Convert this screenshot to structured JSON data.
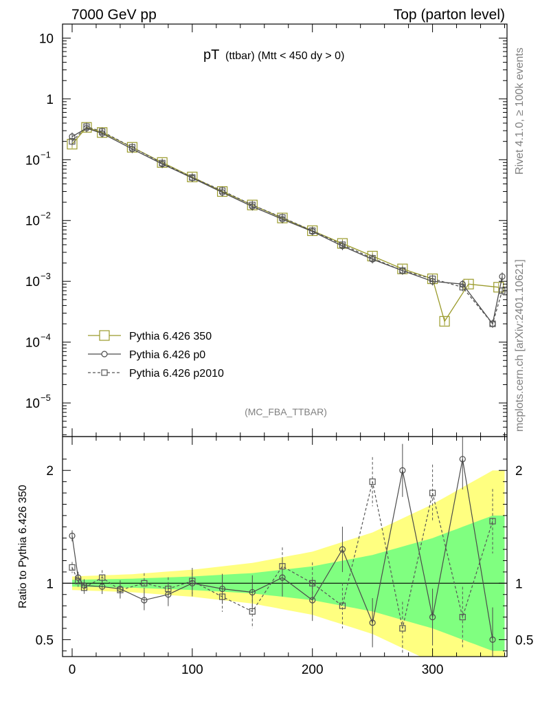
{
  "header": {
    "left": "7000 GeV pp",
    "right": "Top (parton level)"
  },
  "side": {
    "rivet": "Rivet 4.1.0, ≥ 100k events",
    "mcplots": "mcplots.cern.ch [arXiv:2401.10621]"
  },
  "plot": {
    "title_main": "pT",
    "title_rest": "(ttbar) (Mtt < 450 dy > 0)",
    "analysis": "(MC_FBA_TTBAR)",
    "ratio_ylabel": "Ratio to Pythia 6.426 350"
  },
  "colors": {
    "ref": "#9a9a2a",
    "p0": "#4a4a4a",
    "p2010": "#555555",
    "band_outer": "#ffff80",
    "band_inner": "#80ff80"
  },
  "chart_data": [
    {
      "type": "line",
      "title": "pT (ttbar) (Mtt < 450 dy > 0)",
      "xlabel": "",
      "ylabel": "",
      "yscale": "log",
      "xlim": [
        -8,
        362
      ],
      "ylim": [
        2.8e-06,
        17
      ],
      "x_ticks": [
        "0",
        "100",
        "200",
        "300"
      ],
      "y_ticks": [
        "10",
        "1",
        "10^-1",
        "10^-2",
        "10^-3",
        "10^-4",
        "10^-5"
      ],
      "legend": [
        {
          "name": "Pythia 6.426 350",
          "style": "solid-square"
        },
        {
          "name": "Pythia 6.426 p0",
          "style": "solid-circle"
        },
        {
          "name": "Pythia 6.426 p2010",
          "style": "dashed-square"
        }
      ],
      "legend_position": "bottom-left",
      "series": [
        {
          "name": "Pythia 6.426 350",
          "x": [
            0,
            12,
            25,
            50,
            75,
            100,
            125,
            150,
            175,
            200,
            225,
            250,
            275,
            300,
            310,
            330,
            355
          ],
          "values": [
            0.18,
            0.34,
            0.28,
            0.16,
            0.09,
            0.052,
            0.03,
            0.018,
            0.011,
            0.0068,
            0.0042,
            0.0026,
            0.0016,
            0.0011,
            0.00022,
            0.0009,
            0.0008
          ]
        },
        {
          "name": "Pythia 6.426 p0",
          "x": [
            0,
            12,
            25,
            50,
            75,
            100,
            125,
            150,
            175,
            200,
            225,
            250,
            275,
            300,
            325,
            350,
            358
          ],
          "values": [
            0.24,
            0.33,
            0.27,
            0.15,
            0.085,
            0.05,
            0.029,
            0.017,
            0.0105,
            0.0066,
            0.0038,
            0.0023,
            0.0015,
            0.001,
            0.0009,
            0.0002,
            0.0012
          ]
        },
        {
          "name": "Pythia 6.426 p2010",
          "x": [
            0,
            12,
            25,
            50,
            75,
            100,
            125,
            150,
            175,
            200,
            225,
            250,
            275,
            300,
            325,
            350,
            358
          ],
          "values": [
            0.2,
            0.35,
            0.29,
            0.16,
            0.088,
            0.051,
            0.031,
            0.018,
            0.0112,
            0.0068,
            0.004,
            0.0024,
            0.0015,
            0.0011,
            0.0008,
            0.0002,
            0.0007
          ]
        }
      ]
    },
    {
      "type": "line",
      "title": "",
      "xlabel": "",
      "ylabel": "Ratio to Pythia 6.426 350",
      "xlim": [
        -8,
        362
      ],
      "ylim": [
        0.35,
        2.3
      ],
      "x_ticks": [
        "0",
        "100",
        "200",
        "300"
      ],
      "y_ticks": [
        "0.5",
        "1",
        "2"
      ],
      "bands": {
        "x": [
          0,
          50,
          100,
          150,
          200,
          250,
          300,
          350
        ],
        "outer": [
          0.06,
          0.08,
          0.12,
          0.18,
          0.28,
          0.45,
          0.7,
          1.0
        ],
        "inner": [
          0.03,
          0.04,
          0.06,
          0.09,
          0.15,
          0.25,
          0.4,
          0.6
        ]
      },
      "series": [
        {
          "name": "Pythia 6.426 p0",
          "x": [
            0,
            5,
            10,
            25,
            40,
            60,
            80,
            100,
            125,
            150,
            175,
            200,
            225,
            250,
            275,
            300,
            325,
            350
          ],
          "values": [
            1.42,
            1.05,
            0.98,
            0.97,
            0.95,
            0.85,
            0.9,
            1.0,
            0.95,
            0.92,
            1.05,
            0.85,
            1.3,
            0.65,
            2.0,
            0.7,
            2.1,
            0.5
          ]
        },
        {
          "name": "Pythia 6.426 p2010",
          "x": [
            0,
            5,
            10,
            25,
            40,
            60,
            80,
            100,
            125,
            150,
            175,
            200,
            225,
            250,
            275,
            300,
            325,
            350
          ],
          "values": [
            1.14,
            1.02,
            0.96,
            1.05,
            0.94,
            1.0,
            0.95,
            1.02,
            0.88,
            0.75,
            1.15,
            1.0,
            0.8,
            1.9,
            0.6,
            1.8,
            0.7,
            1.55
          ]
        }
      ]
    }
  ]
}
